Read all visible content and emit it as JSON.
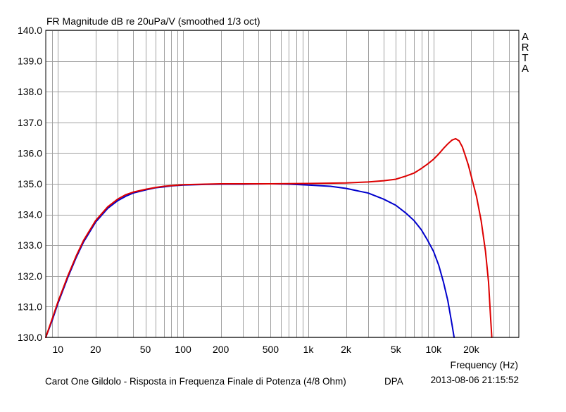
{
  "chart_data": {
    "type": "line",
    "title": "FR Magnitude dB re 20uPa/V (smoothed 1/3 oct)",
    "watermark": "ARTA",
    "xlabel": "Frequency (Hz)",
    "x_scale": "log",
    "xlim": [
      8,
      48000
    ],
    "ylim": [
      130.0,
      140.0
    ],
    "grid": true,
    "y_ticks": [
      "130.0",
      "131.0",
      "132.0",
      "133.0",
      "134.0",
      "135.0",
      "136.0",
      "137.0",
      "138.0",
      "139.0",
      "140.0"
    ],
    "x_tick_labels": [
      {
        "value": 10,
        "label": "10"
      },
      {
        "value": 20,
        "label": "20"
      },
      {
        "value": 50,
        "label": "50"
      },
      {
        "value": 100,
        "label": "100"
      },
      {
        "value": 200,
        "label": "200"
      },
      {
        "value": 500,
        "label": "500"
      },
      {
        "value": 1000,
        "label": "1k"
      },
      {
        "value": 2000,
        "label": "2k"
      },
      {
        "value": 5000,
        "label": "5k"
      },
      {
        "value": 10000,
        "label": "10k"
      },
      {
        "value": 20000,
        "label": "20k"
      }
    ],
    "series": [
      {
        "color": "#0000cc",
        "points": [
          [
            8,
            130.0
          ],
          [
            9,
            130.55
          ],
          [
            10,
            131.1
          ],
          [
            12,
            131.95
          ],
          [
            14,
            132.6
          ],
          [
            16,
            133.1
          ],
          [
            20,
            133.75
          ],
          [
            25,
            134.2
          ],
          [
            30,
            134.45
          ],
          [
            35,
            134.6
          ],
          [
            40,
            134.7
          ],
          [
            50,
            134.8
          ],
          [
            60,
            134.87
          ],
          [
            70,
            134.9
          ],
          [
            80,
            134.93
          ],
          [
            100,
            134.96
          ],
          [
            150,
            134.98
          ],
          [
            200,
            134.99
          ],
          [
            300,
            134.99
          ],
          [
            500,
            135.0
          ],
          [
            700,
            134.99
          ],
          [
            1000,
            134.96
          ],
          [
            1500,
            134.92
          ],
          [
            2000,
            134.85
          ],
          [
            3000,
            134.7
          ],
          [
            4000,
            134.5
          ],
          [
            5000,
            134.3
          ],
          [
            6000,
            134.05
          ],
          [
            7000,
            133.8
          ],
          [
            8000,
            133.5
          ],
          [
            9000,
            133.15
          ],
          [
            10000,
            132.8
          ],
          [
            11000,
            132.35
          ],
          [
            12000,
            131.8
          ],
          [
            13000,
            131.2
          ],
          [
            14000,
            130.45
          ],
          [
            14600,
            130.0
          ]
        ]
      },
      {
        "color": "#dd0000",
        "points": [
          [
            8,
            130.0
          ],
          [
            9,
            130.6
          ],
          [
            10,
            131.15
          ],
          [
            12,
            132.0
          ],
          [
            14,
            132.65
          ],
          [
            16,
            133.15
          ],
          [
            20,
            133.8
          ],
          [
            25,
            134.25
          ],
          [
            30,
            134.5
          ],
          [
            35,
            134.65
          ],
          [
            40,
            134.73
          ],
          [
            50,
            134.82
          ],
          [
            60,
            134.88
          ],
          [
            70,
            134.92
          ],
          [
            80,
            134.94
          ],
          [
            100,
            134.97
          ],
          [
            150,
            134.99
          ],
          [
            200,
            135.0
          ],
          [
            300,
            135.0
          ],
          [
            500,
            135.0
          ],
          [
            1000,
            135.01
          ],
          [
            2000,
            135.03
          ],
          [
            3000,
            135.06
          ],
          [
            4000,
            135.1
          ],
          [
            5000,
            135.15
          ],
          [
            6000,
            135.25
          ],
          [
            7000,
            135.35
          ],
          [
            8000,
            135.5
          ],
          [
            9000,
            135.65
          ],
          [
            10000,
            135.8
          ],
          [
            11000,
            135.97
          ],
          [
            12000,
            136.15
          ],
          [
            13000,
            136.3
          ],
          [
            14000,
            136.42
          ],
          [
            15000,
            136.47
          ],
          [
            16000,
            136.4
          ],
          [
            17000,
            136.2
          ],
          [
            18000,
            135.9
          ],
          [
            19000,
            135.6
          ],
          [
            20000,
            135.25
          ],
          [
            22000,
            134.6
          ],
          [
            24000,
            133.8
          ],
          [
            26000,
            132.8
          ],
          [
            27500,
            131.8
          ],
          [
            28500,
            130.7
          ],
          [
            29200,
            130.0
          ]
        ]
      }
    ]
  },
  "footer": {
    "caption": "Carot One Gildolo - Risposta in Frequenza Finale di Potenza (4/8 Ohm)",
    "label": "DPA",
    "timestamp": "2013-08-06  21:15:52"
  },
  "colors": {
    "grid": "#a0a0a0",
    "axis": "#000000",
    "background": "#ffffff"
  }
}
